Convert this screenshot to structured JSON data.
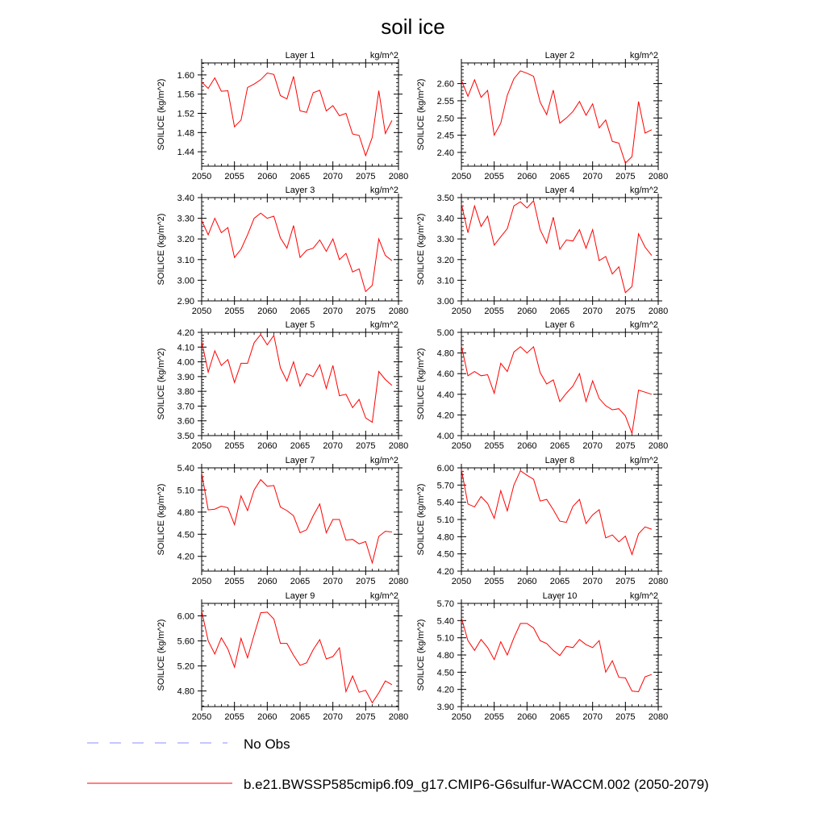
{
  "title": "soil ice",
  "colors": {
    "model_line": "#ff0000",
    "obs_line": "#8c8cff",
    "axis": "#000000"
  },
  "legend": {
    "obs_label": "No Obs",
    "model_label": "b.e21.BWSSP585cmip6.f09_g17.CMIP6-G6sulfur-WACCM.002 (2050-2079)"
  },
  "chart_data": [
    {
      "type": "line",
      "title": "Layer 1",
      "units": "kg/m^2",
      "ylabel": "SOILICE  (kg/m^2)",
      "xlim": [
        2050,
        2080
      ],
      "ylim": [
        1.41,
        1.625
      ],
      "xticks": [
        2050,
        2055,
        2060,
        2065,
        2070,
        2075,
        2080
      ],
      "yticks": [
        1.44,
        1.48,
        1.52,
        1.56,
        1.6
      ],
      "ytick_labels": [
        "1.44",
        "1.48",
        "1.52",
        "1.56",
        "1.60"
      ],
      "x_start": 2050,
      "series": [
        {
          "values": [
            1.585,
            1.572,
            1.594,
            1.566,
            1.567,
            1.492,
            1.506,
            1.574,
            1.581,
            1.59,
            1.604,
            1.601,
            1.557,
            1.55,
            1.597,
            1.525,
            1.522,
            1.563,
            1.568,
            1.525,
            1.536,
            1.515,
            1.52,
            1.477,
            1.474,
            1.432,
            1.47,
            1.567,
            1.478,
            1.505
          ]
        }
      ]
    },
    {
      "type": "line",
      "title": "Layer 2",
      "units": "kg/m^2",
      "ylabel": "SOILICE  (kg/m^2)",
      "xlim": [
        2050,
        2080
      ],
      "ylim": [
        2.36,
        2.66
      ],
      "xticks": [
        2050,
        2055,
        2060,
        2065,
        2070,
        2075,
        2080
      ],
      "yticks": [
        2.4,
        2.45,
        2.5,
        2.55,
        2.6
      ],
      "ytick_labels": [
        "2.40",
        "2.45",
        "2.50",
        "2.55",
        "2.60"
      ],
      "x_start": 2050,
      "series": [
        {
          "values": [
            2.61,
            2.563,
            2.611,
            2.56,
            2.58,
            2.45,
            2.485,
            2.566,
            2.614,
            2.637,
            2.63,
            2.621,
            2.546,
            2.51,
            2.581,
            2.485,
            2.5,
            2.519,
            2.548,
            2.508,
            2.541,
            2.471,
            2.494,
            2.432,
            2.427,
            2.369,
            2.388,
            2.548,
            2.456,
            2.466
          ]
        }
      ]
    },
    {
      "type": "line",
      "title": "Layer 3",
      "units": "kg/m^2",
      "ylabel": "SOILICE  (kg/m^2)",
      "xlim": [
        2050,
        2080
      ],
      "ylim": [
        2.9,
        3.4
      ],
      "xticks": [
        2050,
        2055,
        2060,
        2065,
        2070,
        2075,
        2080
      ],
      "yticks": [
        2.9,
        3.0,
        3.1,
        3.2,
        3.3,
        3.4
      ],
      "ytick_labels": [
        "2.90",
        "3.00",
        "3.10",
        "3.20",
        "3.30",
        "3.40"
      ],
      "x_start": 2050,
      "series": [
        {
          "values": [
            3.29,
            3.22,
            3.3,
            3.23,
            3.255,
            3.11,
            3.15,
            3.22,
            3.3,
            3.325,
            3.3,
            3.31,
            3.205,
            3.155,
            3.265,
            3.11,
            3.145,
            3.155,
            3.195,
            3.14,
            3.2,
            3.1,
            3.13,
            3.04,
            3.055,
            2.945,
            2.975,
            3.2,
            3.12,
            3.095
          ]
        }
      ]
    },
    {
      "type": "line",
      "title": "Layer 4",
      "units": "kg/m^2",
      "ylabel": "SOILICE  (kg/m^2)",
      "xlim": [
        2050,
        2080
      ],
      "ylim": [
        3.0,
        3.5
      ],
      "xticks": [
        2050,
        2055,
        2060,
        2065,
        2070,
        2075,
        2080
      ],
      "yticks": [
        3.0,
        3.1,
        3.2,
        3.3,
        3.4,
        3.5
      ],
      "ytick_labels": [
        "3.00",
        "3.10",
        "3.20",
        "3.30",
        "3.40",
        "3.50"
      ],
      "x_start": 2050,
      "series": [
        {
          "values": [
            3.47,
            3.33,
            3.46,
            3.36,
            3.41,
            3.27,
            3.31,
            3.35,
            3.46,
            3.48,
            3.45,
            3.485,
            3.345,
            3.28,
            3.405,
            3.25,
            3.295,
            3.29,
            3.345,
            3.255,
            3.345,
            3.195,
            3.215,
            3.13,
            3.165,
            3.04,
            3.07,
            3.325,
            3.26,
            3.22
          ]
        }
      ]
    },
    {
      "type": "line",
      "title": "Layer 5",
      "units": "kg/m^2",
      "ylabel": "SOILICE  (kg/m^2)",
      "xlim": [
        2050,
        2080
      ],
      "ylim": [
        3.5,
        4.2
      ],
      "xticks": [
        2050,
        2055,
        2060,
        2065,
        2070,
        2075,
        2080
      ],
      "yticks": [
        3.5,
        3.6,
        3.7,
        3.8,
        3.9,
        4.0,
        4.1,
        4.2
      ],
      "ytick_labels": [
        "3.50",
        "3.60",
        "3.70",
        "3.80",
        "3.90",
        "4.00",
        "4.10",
        "4.20"
      ],
      "x_start": 2050,
      "series": [
        {
          "values": [
            4.14,
            3.93,
            4.075,
            3.975,
            4.015,
            3.86,
            3.99,
            3.99,
            4.13,
            4.185,
            4.115,
            4.18,
            3.96,
            3.87,
            4.0,
            3.835,
            3.92,
            3.9,
            3.98,
            3.82,
            3.975,
            3.77,
            3.78,
            3.69,
            3.745,
            3.62,
            3.59,
            3.935,
            3.88,
            3.84
          ]
        }
      ]
    },
    {
      "type": "line",
      "title": "Layer 6",
      "units": "kg/m^2",
      "ylabel": "SOILICE  (kg/m^2)",
      "xlim": [
        2050,
        2080
      ],
      "ylim": [
        4.0,
        5.0
      ],
      "xticks": [
        2050,
        2055,
        2060,
        2065,
        2070,
        2075,
        2080
      ],
      "yticks": [
        4.0,
        4.2,
        4.4,
        4.6,
        4.8,
        5.0
      ],
      "ytick_labels": [
        "4.00",
        "4.20",
        "4.40",
        "4.60",
        "4.80",
        "5.00"
      ],
      "x_start": 2050,
      "series": [
        {
          "values": [
            4.87,
            4.58,
            4.62,
            4.58,
            4.59,
            4.41,
            4.7,
            4.62,
            4.81,
            4.86,
            4.8,
            4.86,
            4.61,
            4.5,
            4.54,
            4.33,
            4.41,
            4.48,
            4.6,
            4.33,
            4.53,
            4.36,
            4.29,
            4.25,
            4.26,
            4.19,
            4.02,
            4.44,
            4.42,
            4.4
          ]
        }
      ]
    },
    {
      "type": "line",
      "title": "Layer 7",
      "units": "kg/m^2",
      "ylabel": "SOILICE  (kg/m^2)",
      "xlim": [
        2050,
        2080
      ],
      "ylim": [
        4.0,
        5.4
      ],
      "xticks": [
        2050,
        2055,
        2060,
        2065,
        2070,
        2075,
        2080
      ],
      "yticks": [
        4.2,
        4.5,
        4.8,
        5.1,
        5.4
      ],
      "ytick_labels": [
        "4.20",
        "4.50",
        "4.80",
        "5.10",
        "5.40"
      ],
      "x_start": 2050,
      "series": [
        {
          "values": [
            5.33,
            4.83,
            4.84,
            4.88,
            4.86,
            4.63,
            5.02,
            4.82,
            5.1,
            5.24,
            5.15,
            5.16,
            4.87,
            4.82,
            4.75,
            4.52,
            4.56,
            4.75,
            4.91,
            4.52,
            4.7,
            4.7,
            4.42,
            4.43,
            4.37,
            4.4,
            4.11,
            4.47,
            4.54,
            4.53
          ]
        }
      ]
    },
    {
      "type": "line",
      "title": "Layer 8",
      "units": "kg/m^2",
      "ylabel": "SOILICE  (kg/m^2)",
      "xlim": [
        2050,
        2080
      ],
      "ylim": [
        4.2,
        6.0
      ],
      "xticks": [
        2050,
        2055,
        2060,
        2065,
        2070,
        2075,
        2080
      ],
      "yticks": [
        4.2,
        4.5,
        4.8,
        5.1,
        5.4,
        5.7,
        6.0
      ],
      "ytick_labels": [
        "4.20",
        "4.50",
        "4.80",
        "5.10",
        "5.40",
        "5.70",
        "6.00"
      ],
      "x_start": 2050,
      "series": [
        {
          "values": [
            5.97,
            5.37,
            5.32,
            5.5,
            5.38,
            5.12,
            5.6,
            5.25,
            5.7,
            5.95,
            5.87,
            5.8,
            5.42,
            5.45,
            5.27,
            5.07,
            5.05,
            5.33,
            5.45,
            5.03,
            5.18,
            5.27,
            4.78,
            4.83,
            4.71,
            4.81,
            4.49,
            4.85,
            4.97,
            4.93
          ]
        }
      ]
    },
    {
      "type": "line",
      "title": "Layer 9",
      "units": "kg/m^2",
      "ylabel": "SOILICE  (kg/m^2)",
      "xlim": [
        2050,
        2080
      ],
      "ylim": [
        4.55,
        6.2
      ],
      "xticks": [
        2050,
        2055,
        2060,
        2065,
        2070,
        2075,
        2080
      ],
      "yticks": [
        4.8,
        5.2,
        5.6,
        6.0
      ],
      "ytick_labels": [
        "4.80",
        "5.20",
        "5.60",
        "6.00"
      ],
      "x_start": 2050,
      "series": [
        {
          "values": [
            6.08,
            5.6,
            5.39,
            5.65,
            5.47,
            5.18,
            5.64,
            5.33,
            5.7,
            6.05,
            6.06,
            5.95,
            5.56,
            5.56,
            5.37,
            5.21,
            5.25,
            5.46,
            5.62,
            5.31,
            5.35,
            5.49,
            4.79,
            5.04,
            4.78,
            4.81,
            4.61,
            4.77,
            4.96,
            4.9
          ]
        }
      ]
    },
    {
      "type": "line",
      "title": "Layer 10",
      "units": "kg/m^2",
      "ylabel": "SOILICE  (kg/m^2)",
      "xlim": [
        2050,
        2080
      ],
      "ylim": [
        3.9,
        5.7
      ],
      "xticks": [
        2050,
        2055,
        2060,
        2065,
        2070,
        2075,
        2080
      ],
      "yticks": [
        3.9,
        4.2,
        4.5,
        4.8,
        5.1,
        5.4,
        5.7
      ],
      "ytick_labels": [
        "3.90",
        "4.20",
        "4.50",
        "4.80",
        "5.10",
        "5.40",
        "5.70"
      ],
      "x_start": 2050,
      "series": [
        {
          "values": [
            5.45,
            5.05,
            4.88,
            5.07,
            4.93,
            4.72,
            5.03,
            4.8,
            5.1,
            5.35,
            5.35,
            5.27,
            5.05,
            5.0,
            4.88,
            4.79,
            4.95,
            4.93,
            5.07,
            4.98,
            4.93,
            5.05,
            4.5,
            4.7,
            4.41,
            4.4,
            4.17,
            4.16,
            4.42,
            4.46
          ]
        }
      ]
    }
  ]
}
